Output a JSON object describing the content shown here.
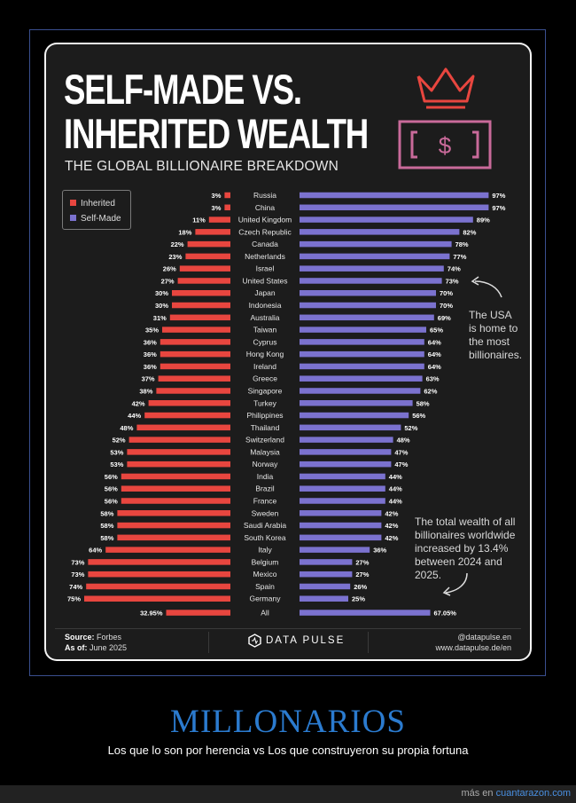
{
  "header": {
    "title_line1": "SELF-MADE VS.",
    "title_line2": "INHERITED WEALTH",
    "subtitle": "THE GLOBAL BILLIONAIRE BREAKDOWN"
  },
  "legend": {
    "inherited": "Inherited",
    "self_made": "Self-Made"
  },
  "colors": {
    "inherited": "#e8463f",
    "self_made": "#7b72cf",
    "background": "#1c1c1c",
    "icon": "#e8463f",
    "icon2": "#c96a9a"
  },
  "chart_data": {
    "type": "bar",
    "orientation": "horizontal-diverging",
    "title": "SELF-MADE VS. INHERITED WEALTH",
    "categories": [
      "Russia",
      "China",
      "United Kingdom",
      "Czech Republic",
      "Canada",
      "Netherlands",
      "Israel",
      "United States",
      "Japan",
      "Indonesia",
      "Australia",
      "Taiwan",
      "Cyprus",
      "Hong Kong",
      "Ireland",
      "Greece",
      "Singapore",
      "Turkey",
      "Philippines",
      "Thailand",
      "Switzerland",
      "Malaysia",
      "Norway",
      "India",
      "Brazil",
      "France",
      "Sweden",
      "Saudi Arabia",
      "South Korea",
      "Italy",
      "Belgium",
      "Mexico",
      "Spain",
      "Germany",
      "All"
    ],
    "series": [
      {
        "name": "Inherited",
        "values": [
          3,
          3,
          11,
          18,
          22,
          23,
          26,
          27,
          30,
          30,
          31,
          35,
          36,
          36,
          36,
          37,
          38,
          42,
          44,
          48,
          52,
          53,
          53,
          56,
          56,
          56,
          58,
          58,
          58,
          64,
          73,
          73,
          74,
          75,
          32.95
        ],
        "labels": [
          "3%",
          "3%",
          "11%",
          "18%",
          "22%",
          "23%",
          "26%",
          "27%",
          "30%",
          "30%",
          "31%",
          "35%",
          "36%",
          "36%",
          "36%",
          "37%",
          "38%",
          "42%",
          "44%",
          "48%",
          "52%",
          "53%",
          "53%",
          "56%",
          "56%",
          "56%",
          "58%",
          "58%",
          "58%",
          "64%",
          "73%",
          "73%",
          "74%",
          "75%",
          "32.95%"
        ]
      },
      {
        "name": "Self-Made",
        "values": [
          97,
          97,
          89,
          82,
          78,
          77,
          74,
          73,
          70,
          70,
          69,
          65,
          64,
          64,
          64,
          63,
          62,
          58,
          56,
          52,
          48,
          47,
          47,
          44,
          44,
          44,
          42,
          42,
          42,
          36,
          27,
          27,
          26,
          25,
          67.05
        ],
        "labels": [
          "97%",
          "97%",
          "89%",
          "82%",
          "78%",
          "77%",
          "74%",
          "73%",
          "70%",
          "70%",
          "69%",
          "65%",
          "64%",
          "64%",
          "64%",
          "63%",
          "62%",
          "58%",
          "56%",
          "52%",
          "48%",
          "47%",
          "47%",
          "44%",
          "44%",
          "44%",
          "42%",
          "42%",
          "42%",
          "36%",
          "27%",
          "27%",
          "26%",
          "25%",
          "67.05%"
        ]
      }
    ],
    "xlim": [
      0,
      100
    ]
  },
  "annotations": {
    "usa_note": [
      "The USA",
      "is home to",
      "the most",
      "billionaires."
    ],
    "total_note": [
      "The total wealth of all",
      "billionaires worldwide",
      "increased by 13.4%",
      "between 2024 and",
      "2025."
    ]
  },
  "footer": {
    "source_label": "Source:",
    "source_value": "Forbes",
    "asof_label": "As of:",
    "asof_value": "June 2025",
    "brand": "DATA PULSE",
    "handle": "@datapulse.en",
    "website": "www.datapulse.de/en"
  },
  "caption": {
    "title": "MILLONARIOS",
    "subtitle": "Los que lo son por herencia vs Los que construyeron su propia fortuna",
    "more_prefix": "más en",
    "more_link": "cuantarazon.com"
  }
}
